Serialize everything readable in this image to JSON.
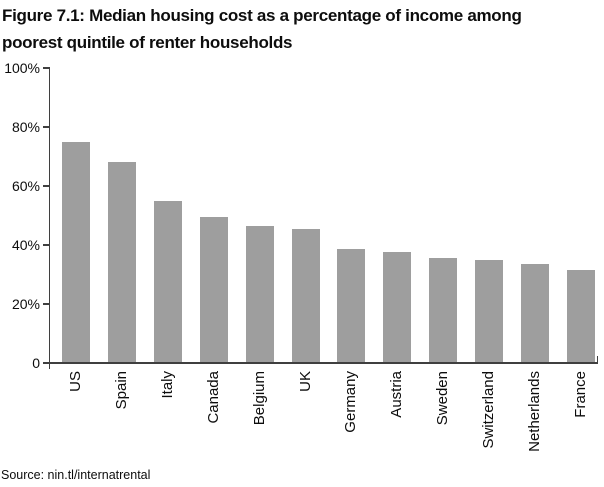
{
  "header": {
    "title_line1": "Figure 7.1: Median housing cost as a percentage of income among",
    "title_line2": "poorest quintile of renter households"
  },
  "chart_data": {
    "type": "bar",
    "title": "Figure 7.1: Median housing cost as a percentage of income among poorest quintile of renter households",
    "categories": [
      "US",
      "Spain",
      "Italy",
      "Canada",
      "Belgium",
      "UK",
      "Germany",
      "Austria",
      "Sweden",
      "Switzerland",
      "Netherlands",
      "France"
    ],
    "values": [
      75,
      68,
      55,
      49.5,
      46.5,
      45.5,
      38.5,
      37.5,
      35.5,
      35,
      33.5,
      31.5
    ],
    "unit": "%",
    "xlabel": "",
    "ylabel": "",
    "ylim": [
      0,
      100
    ],
    "ytick_values": [
      100,
      80,
      60,
      40,
      20,
      0
    ],
    "ytick_labels": [
      "100%",
      "80%",
      "60%",
      "40%",
      "20%",
      "0"
    ],
    "grid": false,
    "legend": "none",
    "bar_color": "#9e9e9e",
    "axis_color": "#3f3f3f",
    "text_color": "#0d0d0d",
    "background_color": "#ffffff"
  },
  "footer": {
    "source": "Source: nin.tl/internatrental"
  }
}
